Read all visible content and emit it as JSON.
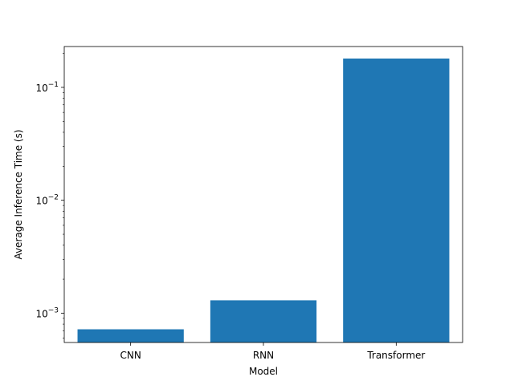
{
  "chart_data": {
    "type": "bar",
    "title": "",
    "xlabel": "Model",
    "ylabel": "Average Inference Time (s)",
    "yscale": "log",
    "ylim": [
      0.00055,
      0.23
    ],
    "categories": [
      "CNN",
      "RNN",
      "Transformer"
    ],
    "values": [
      0.00072,
      0.0013,
      0.18
    ],
    "bar_color": "#1f77b4",
    "major_ticks": [
      {
        "value": 0.001,
        "base": "10",
        "exp": "−3"
      },
      {
        "value": 0.01,
        "base": "10",
        "exp": "−2"
      },
      {
        "value": 0.1,
        "base": "10",
        "exp": "−1"
      }
    ],
    "grid": false
  }
}
